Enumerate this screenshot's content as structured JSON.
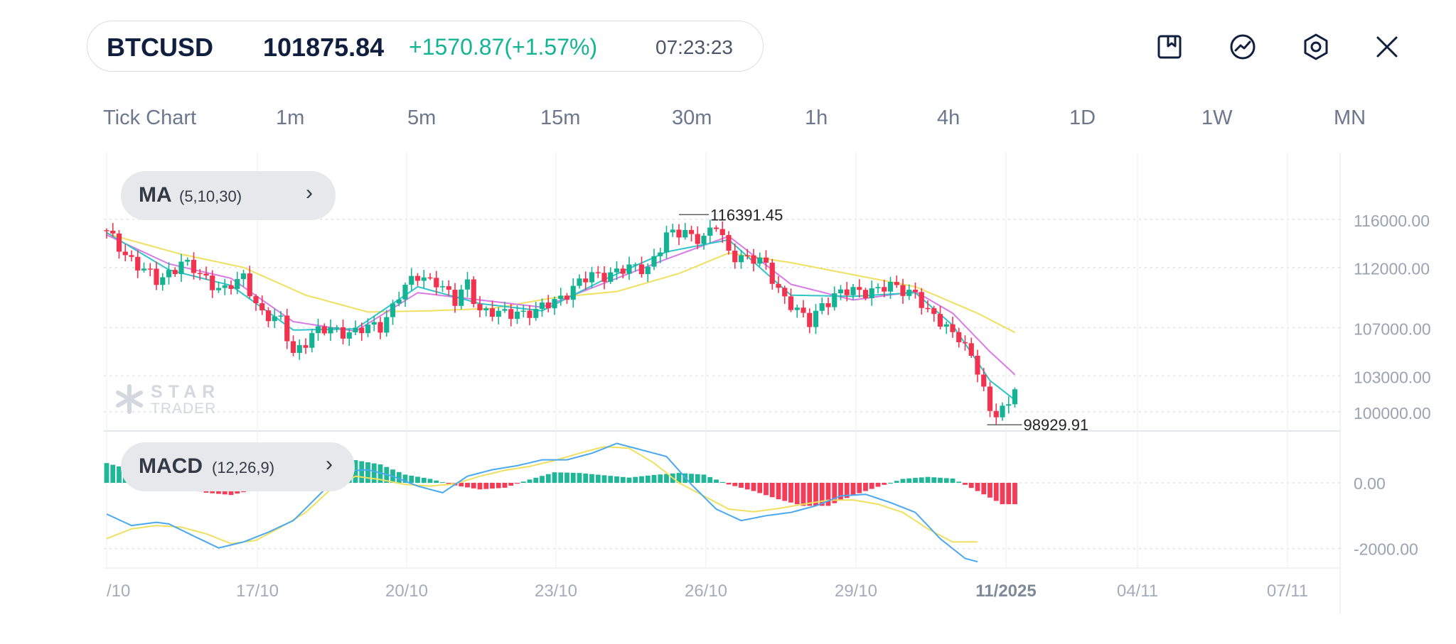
{
  "header": {
    "symbol": "BTCUSD",
    "price": "101875.84",
    "change": "+1570.87(+1.57%)",
    "time": "07:23:23",
    "change_color": "#14b394"
  },
  "toolbar": {
    "icons": [
      "bookmark-icon",
      "trend-icon",
      "settings-icon",
      "close-icon"
    ]
  },
  "timeframes": [
    "Tick Chart",
    "1m",
    "5m",
    "15m",
    "30m",
    "1h",
    "4h",
    "1D",
    "1W",
    "MN"
  ],
  "indicators": {
    "ma": {
      "name": "MA",
      "params": "(5,10,30)"
    },
    "macd": {
      "name": "MACD",
      "params": "(12,26,9)"
    }
  },
  "watermark": {
    "line1": "STAR",
    "line2": "TRADER"
  },
  "colors": {
    "up": "#14b394",
    "down": "#f2334f",
    "ma5": "#2ec4c9",
    "ma10": "#d97ae6",
    "ma30": "#f0e060",
    "dif": "#4aa8f0",
    "dea": "#f0e060"
  },
  "chart_data": [
    {
      "type": "candlestick",
      "price_labels": [
        "116000.00",
        "112000.00",
        "107000.00",
        "103000.00",
        "100000.00"
      ],
      "price_ticks": [
        116000,
        112000,
        107000,
        103000,
        100000
      ],
      "x_labels": [
        "/10",
        "17/10",
        "20/10",
        "23/10",
        "26/10",
        "29/10",
        "11/2025",
        "04/11",
        "07/11"
      ],
      "max_label": "116391.45",
      "max_value": 116391.45,
      "min_label": "98929.91",
      "min_value": 98929.91,
      "last_close": 101875.84,
      "close_path": [
        [
          0,
          114800
        ],
        [
          5,
          112200
        ],
        [
          8,
          110800
        ],
        [
          12,
          112500
        ],
        [
          15,
          111300
        ],
        [
          19,
          110200
        ],
        [
          22,
          111000
        ],
        [
          25,
          108300
        ],
        [
          28,
          107400
        ],
        [
          30,
          104900
        ],
        [
          33,
          106500
        ],
        [
          36,
          106800
        ],
        [
          40,
          106700
        ],
        [
          44,
          107100
        ],
        [
          47,
          109800
        ],
        [
          50,
          111200
        ],
        [
          53,
          111000
        ],
        [
          56,
          109000
        ],
        [
          58,
          110800
        ],
        [
          60,
          108500
        ],
        [
          63,
          108000
        ],
        [
          66,
          108400
        ],
        [
          69,
          108200
        ],
        [
          72,
          109300
        ],
        [
          75,
          110300
        ],
        [
          78,
          111300
        ],
        [
          81,
          111600
        ],
        [
          84,
          111800
        ],
        [
          87,
          112100
        ],
        [
          90,
          114500
        ],
        [
          93,
          115000
        ],
        [
          96,
          114400
        ],
        [
          98,
          115400
        ],
        [
          100,
          113300
        ],
        [
          103,
          112800
        ],
        [
          106,
          112100
        ],
        [
          108,
          110300
        ],
        [
          111,
          108200
        ],
        [
          113,
          107400
        ],
        [
          115,
          109100
        ],
        [
          118,
          109800
        ],
        [
          121,
          110100
        ],
        [
          124,
          110200
        ],
        [
          127,
          110300
        ],
        [
          130,
          110000
        ],
        [
          132,
          108100
        ],
        [
          135,
          107100
        ],
        [
          137,
          106400
        ],
        [
          140,
          103300
        ],
        [
          142,
          100100
        ],
        [
          145,
          100500
        ],
        [
          146,
          101875.84
        ]
      ],
      "ma_series": [
        "MA5",
        "MA10",
        "MA30"
      ],
      "ma_values": {
        "MA5": [
          [
            0,
            114900
          ],
          [
            10,
            111800
          ],
          [
            20,
            110500
          ],
          [
            30,
            106800
          ],
          [
            40,
            106900
          ],
          [
            50,
            110400
          ],
          [
            60,
            109000
          ],
          [
            70,
            108400
          ],
          [
            80,
            111000
          ],
          [
            90,
            113300
          ],
          [
            100,
            114300
          ],
          [
            110,
            109700
          ],
          [
            120,
            109600
          ],
          [
            130,
            109900
          ],
          [
            136,
            107200
          ],
          [
            142,
            102600
          ],
          [
            146,
            101000
          ]
        ],
        "MA10": [
          [
            0,
            114700
          ],
          [
            10,
            112300
          ],
          [
            20,
            111100
          ],
          [
            30,
            107500
          ],
          [
            40,
            106700
          ],
          [
            50,
            109900
          ],
          [
            60,
            109300
          ],
          [
            70,
            108700
          ],
          [
            80,
            110700
          ],
          [
            90,
            112700
          ],
          [
            100,
            114600
          ],
          [
            110,
            110600
          ],
          [
            120,
            109300
          ],
          [
            130,
            110000
          ],
          [
            136,
            108200
          ],
          [
            142,
            105000
          ],
          [
            146,
            103100
          ]
        ],
        "MA30": [
          [
            0,
            114800
          ],
          [
            12,
            113100
          ],
          [
            22,
            112000
          ],
          [
            32,
            109700
          ],
          [
            42,
            108300
          ],
          [
            52,
            108400
          ],
          [
            62,
            108600
          ],
          [
            72,
            109500
          ],
          [
            82,
            110000
          ],
          [
            92,
            111500
          ],
          [
            100,
            113200
          ],
          [
            110,
            112400
          ],
          [
            120,
            111400
          ],
          [
            130,
            110400
          ],
          [
            140,
            108200
          ],
          [
            146,
            106600
          ]
        ]
      }
    },
    {
      "type": "macd",
      "y_labels": [
        "0.00",
        "-2000.00"
      ],
      "y_ticks": [
        0,
        -2000
      ],
      "histogram": [
        [
          0,
          600
        ],
        [
          5,
          350
        ],
        [
          8,
          -80
        ],
        [
          12,
          -150
        ],
        [
          16,
          -300
        ],
        [
          20,
          -370
        ],
        [
          24,
          -200
        ],
        [
          28,
          150
        ],
        [
          32,
          250
        ],
        [
          36,
          500
        ],
        [
          40,
          690
        ],
        [
          44,
          560
        ],
        [
          48,
          250
        ],
        [
          52,
          120
        ],
        [
          56,
          -80
        ],
        [
          60,
          -200
        ],
        [
          64,
          -150
        ],
        [
          68,
          100
        ],
        [
          72,
          320
        ],
        [
          76,
          300
        ],
        [
          80,
          230
        ],
        [
          84,
          160
        ],
        [
          88,
          240
        ],
        [
          92,
          300
        ],
        [
          96,
          250
        ],
        [
          100,
          -50
        ],
        [
          104,
          -250
        ],
        [
          108,
          -500
        ],
        [
          112,
          -700
        ],
        [
          116,
          -700
        ],
        [
          120,
          -380
        ],
        [
          124,
          -120
        ],
        [
          128,
          120
        ],
        [
          132,
          180
        ],
        [
          136,
          130
        ],
        [
          140,
          -250
        ],
        [
          144,
          -650
        ],
        [
          146,
          -650
        ]
      ],
      "dif": [
        [
          0,
          -950
        ],
        [
          4,
          -1300
        ],
        [
          8,
          -1200
        ],
        [
          10,
          -1250
        ],
        [
          14,
          -1620
        ],
        [
          18,
          -1980
        ],
        [
          22,
          -1800
        ],
        [
          26,
          -1500
        ],
        [
          30,
          -1150
        ],
        [
          34,
          -400
        ],
        [
          38,
          350
        ],
        [
          42,
          400
        ],
        [
          46,
          200
        ],
        [
          50,
          -100
        ],
        [
          54,
          -300
        ],
        [
          58,
          200
        ],
        [
          62,
          400
        ],
        [
          66,
          520
        ],
        [
          70,
          700
        ],
        [
          74,
          700
        ],
        [
          78,
          900
        ],
        [
          82,
          1200
        ],
        [
          86,
          1000
        ],
        [
          90,
          800
        ],
        [
          94,
          -50
        ],
        [
          98,
          -800
        ],
        [
          102,
          -1150
        ],
        [
          106,
          -1000
        ],
        [
          110,
          -900
        ],
        [
          114,
          -700
        ],
        [
          118,
          -400
        ],
        [
          122,
          -350
        ],
        [
          126,
          -600
        ],
        [
          130,
          -900
        ],
        [
          134,
          -1700
        ],
        [
          138,
          -2300
        ],
        [
          140,
          -2400
        ]
      ],
      "dea": [
        [
          0,
          -1700
        ],
        [
          4,
          -1400
        ],
        [
          8,
          -1300
        ],
        [
          12,
          -1350
        ],
        [
          16,
          -1550
        ],
        [
          20,
          -1850
        ],
        [
          24,
          -1750
        ],
        [
          28,
          -1350
        ],
        [
          32,
          -900
        ],
        [
          36,
          -200
        ],
        [
          40,
          200
        ],
        [
          44,
          100
        ],
        [
          48,
          -50
        ],
        [
          52,
          -100
        ],
        [
          56,
          -30
        ],
        [
          60,
          200
        ],
        [
          64,
          380
        ],
        [
          68,
          500
        ],
        [
          72,
          680
        ],
        [
          76,
          900
        ],
        [
          80,
          1100
        ],
        [
          84,
          1050
        ],
        [
          88,
          600
        ],
        [
          92,
          0
        ],
        [
          96,
          -400
        ],
        [
          100,
          -800
        ],
        [
          104,
          -880
        ],
        [
          108,
          -780
        ],
        [
          112,
          -650
        ],
        [
          116,
          -530
        ],
        [
          120,
          -520
        ],
        [
          124,
          -650
        ],
        [
          128,
          -900
        ],
        [
          132,
          -1400
        ],
        [
          136,
          -1800
        ],
        [
          140,
          -1800
        ]
      ]
    }
  ]
}
